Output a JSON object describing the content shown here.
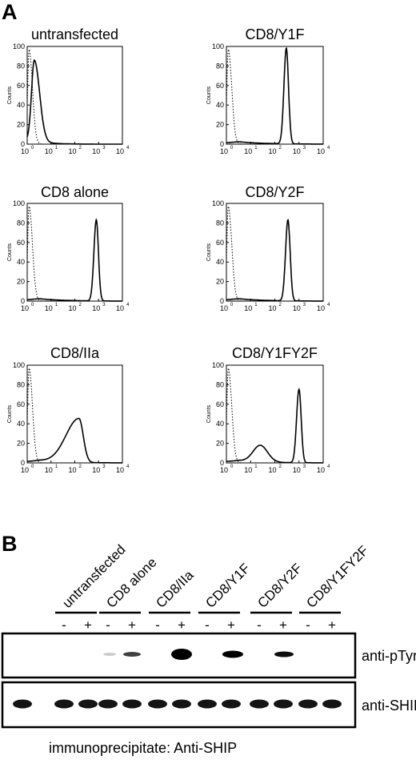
{
  "panel_a": {
    "letter": "A",
    "y_axis_label": "Counts",
    "y_ticks": [
      "0",
      "20",
      "40",
      "60",
      "80",
      "100"
    ],
    "x_ticks": [
      "10",
      "10",
      "10",
      "10",
      "10"
    ],
    "x_exponents": [
      "0",
      "1",
      "2",
      "3",
      "4"
    ],
    "histograms": [
      {
        "title": "untransfected"
      },
      {
        "title": "CD8/Y1F"
      },
      {
        "title": "CD8 alone"
      },
      {
        "title": "CD8/Y2F"
      },
      {
        "title": "CD8/IIa"
      },
      {
        "title": "CD8/Y1FY2F"
      }
    ]
  },
  "panel_b": {
    "letter": "B",
    "groups": [
      {
        "label": "untransfected"
      },
      {
        "label": "CD8 alone"
      },
      {
        "label": "CD8/IIa"
      },
      {
        "label": "CD8/Y1F"
      },
      {
        "label": "CD8/Y2F"
      },
      {
        "label": "CD8/Y1FY2F"
      }
    ],
    "minus": "-",
    "plus": "+",
    "blot_top_label": "anti-pTyr",
    "blot_bottom_label": "anti-SHIP",
    "caption": "immunoprecipitate: Anti-SHIP"
  },
  "chart_data": [
    {
      "type": "line",
      "title": "untransfected",
      "ylabel": "Counts",
      "xscale": "log",
      "xlim": [
        1,
        10000
      ],
      "ylim": [
        0,
        100
      ],
      "series": [
        {
          "style": "solid",
          "peak_x": 2,
          "peak_y": 82
        },
        {
          "style": "dotted",
          "peak_x": 1.2,
          "peak_y": 97
        }
      ]
    },
    {
      "type": "line",
      "title": "CD8/Y1F",
      "ylabel": "Counts",
      "xscale": "log",
      "xlim": [
        1,
        10000
      ],
      "ylim": [
        0,
        100
      ],
      "series": [
        {
          "style": "solid",
          "peak_x": 300,
          "peak_y": 98
        },
        {
          "style": "dotted",
          "peak_x": 1.2,
          "peak_y": 97
        }
      ]
    },
    {
      "type": "line",
      "title": "CD8 alone",
      "ylabel": "Counts",
      "xscale": "log",
      "xlim": [
        1,
        10000
      ],
      "ylim": [
        0,
        100
      ],
      "series": [
        {
          "style": "solid",
          "peak_x": 800,
          "peak_y": 83
        },
        {
          "style": "dotted",
          "peak_x": 1.2,
          "peak_y": 97
        }
      ]
    },
    {
      "type": "line",
      "title": "CD8/Y2F",
      "ylabel": "Counts",
      "xscale": "log",
      "xlim": [
        1,
        10000
      ],
      "ylim": [
        0,
        100
      ],
      "series": [
        {
          "style": "solid",
          "peak_x": 350,
          "peak_y": 83
        },
        {
          "style": "dotted",
          "peak_x": 1.2,
          "peak_y": 97
        }
      ]
    },
    {
      "type": "line",
      "title": "CD8/IIa",
      "ylabel": "Counts",
      "xscale": "log",
      "xlim": [
        1,
        10000
      ],
      "ylim": [
        0,
        100
      ],
      "series": [
        {
          "style": "solid",
          "peak_x": 150,
          "peak_y": 45
        },
        {
          "style": "dotted",
          "peak_x": 1.2,
          "peak_y": 97
        }
      ]
    },
    {
      "type": "line",
      "title": "CD8/Y1FY2F",
      "ylabel": "Counts",
      "xscale": "log",
      "xlim": [
        1,
        10000
      ],
      "ylim": [
        0,
        100
      ],
      "series": [
        {
          "style": "solid",
          "peak_x": 1000,
          "peak_y": 75
        },
        {
          "style": "dotted",
          "peak_x": 1.2,
          "peak_y": 97
        }
      ]
    }
  ]
}
